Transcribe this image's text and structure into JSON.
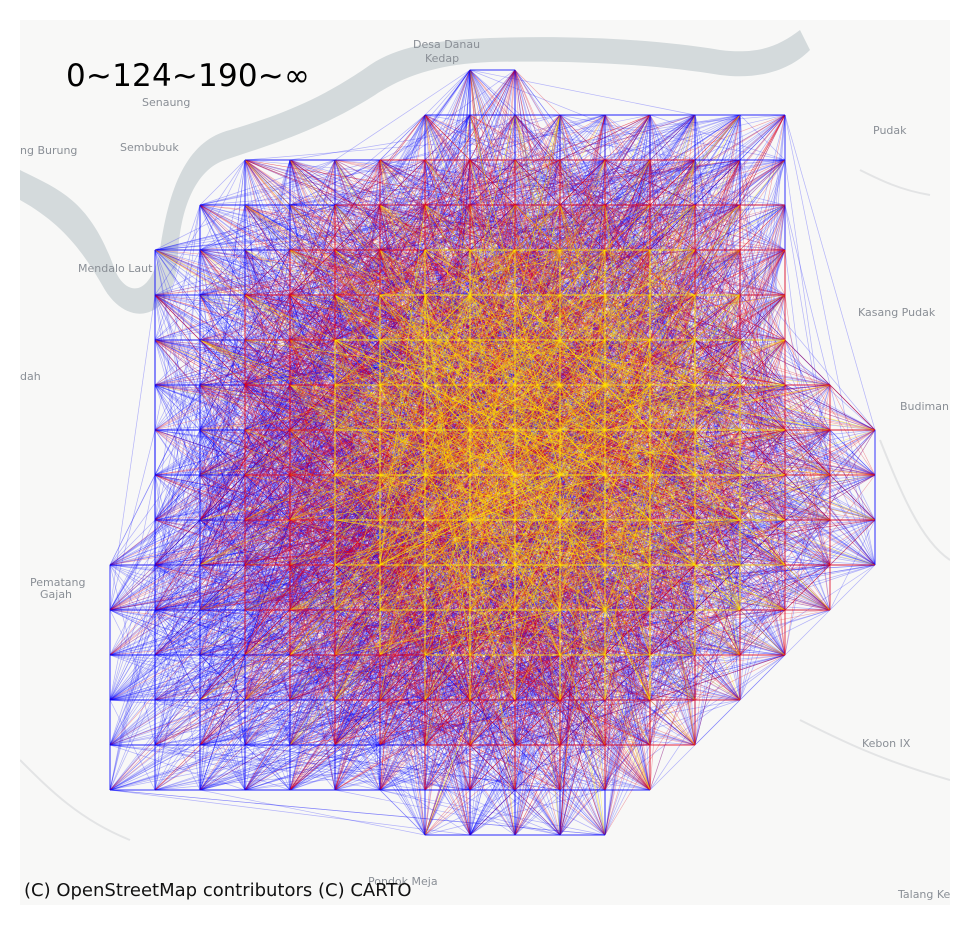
{
  "legend": {
    "title": "0~124~190~∞",
    "classes": [
      {
        "range": "0~124",
        "color": "#0000ff"
      },
      {
        "range": "124~190",
        "color": "#e0001a"
      },
      {
        "range": "190~∞",
        "color": "#ffe400"
      }
    ]
  },
  "attribution": "(C) OpenStreetMap contributors (C) CARTO",
  "basemap": {
    "places": [
      {
        "name": "Desa Danau",
        "id": "desa-danau"
      },
      {
        "name": "Kedap",
        "id": "kedap"
      },
      {
        "name": "Senaung",
        "id": "senaung"
      },
      {
        "name": "Pudak",
        "id": "pudak"
      },
      {
        "name": "ng Burung",
        "id": "ng-burung"
      },
      {
        "name": "Sembubuk",
        "id": "sembubuk"
      },
      {
        "name": "Mendalo Laut",
        "id": "mendalo-laut"
      },
      {
        "name": "Kasang Pudak",
        "id": "kasang-pudak"
      },
      {
        "name": "dah",
        "id": "dah"
      },
      {
        "name": "Budiman",
        "id": "budiman"
      },
      {
        "name": "Pematang",
        "id": "pematang"
      },
      {
        "name": "Gajah",
        "id": "gajah"
      },
      {
        "name": "Kebon IX",
        "id": "kebon-ix"
      },
      {
        "name": "Pondok Meja",
        "id": "pondok-meja"
      },
      {
        "name": "Talang Ke",
        "id": "talang-ke"
      }
    ],
    "colors": {
      "land": "#f8f8f7",
      "water": "#d4dadc",
      "road": "#ffffff",
      "label": "#8a8f96"
    }
  }
}
